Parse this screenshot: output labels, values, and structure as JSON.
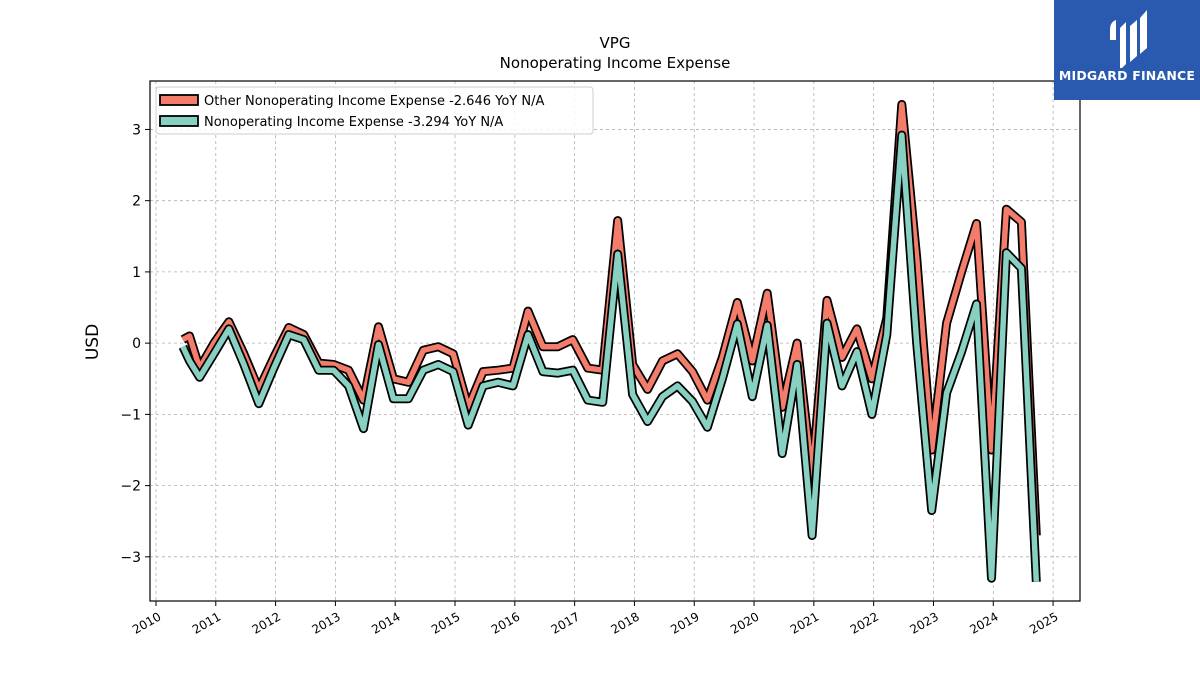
{
  "brand": {
    "name": "MIDGARD FINANCE",
    "logo_icon": "midgard-logo-icon",
    "color": "#2a5ab0"
  },
  "chart_data": {
    "type": "line",
    "title": "VPG",
    "subtitle": "Nonoperating Income Expense",
    "ylabel": "USD",
    "xlabel": "",
    "xlim": [
      2009.9,
      2025.45
    ],
    "ylim": [
      -3.62,
      3.68
    ],
    "xticks": [
      2010,
      2011,
      2012,
      2013,
      2014,
      2015,
      2016,
      2017,
      2018,
      2019,
      2020,
      2021,
      2022,
      2023,
      2024,
      2025
    ],
    "yticks": [
      -3,
      -2,
      -1,
      0,
      1,
      2,
      3
    ],
    "ytick_labels": [
      "−3",
      "−2",
      "−1",
      "0",
      "1",
      "2",
      "3"
    ],
    "grid": true,
    "legend": "top-left",
    "x": [
      2010.45,
      2010.56,
      2010.73,
      2010.97,
      2011.22,
      2011.47,
      2011.72,
      2011.97,
      2012.22,
      2012.47,
      2012.72,
      2012.97,
      2013.22,
      2013.47,
      2013.72,
      2013.97,
      2014.22,
      2014.47,
      2014.72,
      2014.97,
      2015.22,
      2015.47,
      2015.72,
      2015.97,
      2016.22,
      2016.47,
      2016.72,
      2016.97,
      2017.22,
      2017.47,
      2017.72,
      2017.97,
      2018.22,
      2018.47,
      2018.72,
      2018.97,
      2019.22,
      2019.47,
      2019.72,
      2019.97,
      2020.22,
      2020.47,
      2020.72,
      2020.97,
      2021.22,
      2021.47,
      2021.72,
      2021.97,
      2022.22,
      2022.47,
      2022.72,
      2022.97,
      2023.22,
      2023.47,
      2023.72,
      2023.97,
      2024.22,
      2024.47,
      2024.72
    ],
    "series": [
      {
        "name": "Other Nonoperating Income Expense  -2.646 YoY N/A",
        "color": "#f47c6b",
        "values": [
          0.05,
          0.1,
          -0.35,
          0.0,
          0.3,
          -0.15,
          -0.65,
          -0.2,
          0.22,
          0.12,
          -0.28,
          -0.3,
          -0.38,
          -0.8,
          0.23,
          -0.5,
          -0.55,
          -0.1,
          -0.05,
          -0.15,
          -0.9,
          -0.4,
          -0.38,
          -0.35,
          0.45,
          -0.05,
          -0.05,
          0.05,
          -0.35,
          -0.38,
          1.72,
          -0.3,
          -0.65,
          -0.25,
          -0.15,
          -0.4,
          -0.8,
          -0.2,
          0.57,
          -0.25,
          0.7,
          -0.9,
          0.0,
          -1.85,
          0.6,
          -0.2,
          0.2,
          -0.5,
          0.35,
          3.35,
          1.2,
          -1.5,
          0.28,
          1.0,
          1.68,
          -1.5,
          1.88,
          1.7,
          -2.7
        ]
      },
      {
        "name": "Nonoperating Income Expense  -3.294 YoY N/A",
        "color": "#88d0c2",
        "values": [
          -0.05,
          -0.25,
          -0.48,
          -0.15,
          0.2,
          -0.3,
          -0.85,
          -0.35,
          0.12,
          0.05,
          -0.38,
          -0.38,
          -0.6,
          -1.2,
          -0.02,
          -0.78,
          -0.78,
          -0.38,
          -0.3,
          -0.4,
          -1.15,
          -0.6,
          -0.55,
          -0.6,
          0.12,
          -0.4,
          -0.42,
          -0.38,
          -0.8,
          -0.83,
          1.25,
          -0.72,
          -1.1,
          -0.75,
          -0.6,
          -0.82,
          -1.18,
          -0.5,
          0.27,
          -0.75,
          0.25,
          -1.55,
          -0.3,
          -2.7,
          0.28,
          -0.6,
          -0.12,
          -1.0,
          0.12,
          2.92,
          0.0,
          -2.35,
          -0.7,
          -0.12,
          0.55,
          -3.3,
          1.27,
          1.05,
          -3.35
        ]
      }
    ]
  }
}
